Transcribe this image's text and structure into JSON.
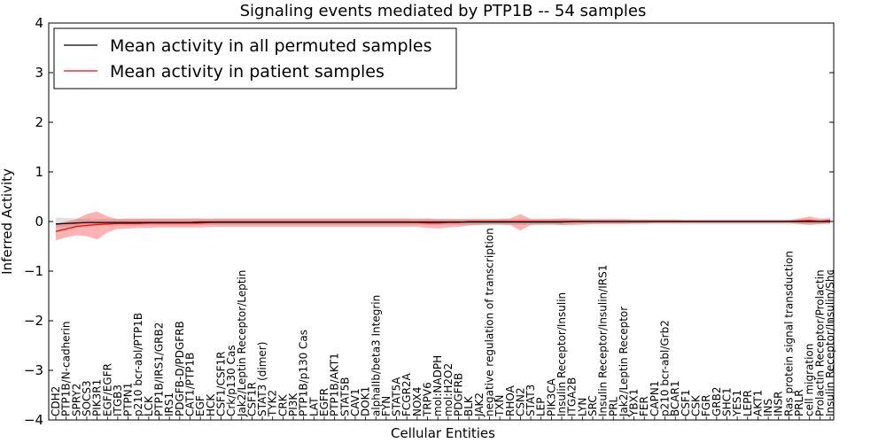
{
  "chart_data": {
    "type": "line",
    "title": "Signaling events mediated by PTP1B -- 54 samples",
    "xlabel": "Cellular Entities",
    "ylabel": "Inferred Activity",
    "ylim": [
      -4,
      4
    ],
    "yticks": [
      "4",
      "3",
      "2",
      "1",
      "0",
      "−1",
      "−2",
      "−3",
      "−4"
    ],
    "ytick_values": [
      4,
      3,
      2,
      1,
      0,
      -1,
      -2,
      -3,
      -4
    ],
    "legend": {
      "placement": "top-left",
      "entries": [
        {
          "label": "Mean activity in all permuted samples",
          "color": "#000000"
        },
        {
          "label": "Mean activity in patient samples",
          "color": "#ff0000"
        }
      ]
    },
    "categories": [
      "CDH2",
      "PTP1B/N-cadherin",
      "SPRY2",
      "SOCS3",
      "PIK3R1",
      "EGF/EGFR",
      "ITGB3",
      "PTPN1",
      "p210 bcr-abl/PTP1B",
      "LCK",
      "PTP1B/IRS1/GRB2",
      "IRS1",
      "PDGFB-D/PDGFRB",
      "CAT1/PTP1B",
      "EGF",
      "HCK",
      "CSF1/CSF1R",
      "Crk/p130 Cas",
      "Jak2/Leptin Receptor/Leptin",
      "CSF1R",
      "STAT3 (dimer)",
      "TYK2",
      "CRK",
      "PI3K",
      "PTP1B/p130 Cas",
      "LAT",
      "EGFR",
      "PTP1B/AKT1",
      "STAT5B",
      "CAV1",
      "DOK1",
      "alphaIIb/beta3 Integrin",
      "FYN",
      "STAT5A",
      "FCGR2A",
      "NOX4",
      "TRPV6",
      "mol:NADPH",
      "mol:H2O2",
      "PDGFRB",
      "BLK",
      "JAK2",
      "negative regulation of transcription",
      "TXN",
      "RHOA",
      "CSN2",
      "STAT3",
      "LEP",
      "PIK3CA",
      "Insulin Receptor/Insulin",
      "ITGA2B",
      "LYN",
      "SRC",
      "Insulin Receptor/Insulin/IRS1",
      "PRL",
      "Jak2/Leptin Receptor",
      "YBX1",
      "FER",
      "CAPN1",
      "p210 bcr-abl/Grb2",
      "BCAR1",
      "CSF1",
      "CSK",
      "FGR",
      "GRB2",
      "SHC1",
      "YES1",
      "LEPR",
      "AKT1",
      "INS",
      "INSR",
      "Ras protein signal transduction",
      "PRLR",
      "cell migration",
      "Prolactin Receptor/Prolactin",
      "Insulin Receptor/Insulin/Shc"
    ],
    "series": [
      {
        "name": "Mean activity in all permuted samples",
        "color": "#000000",
        "values": [
          -0.05,
          -0.04,
          -0.03,
          -0.02,
          -0.02,
          -0.02,
          -0.02,
          -0.02,
          -0.02,
          -0.02,
          -0.02,
          -0.02,
          -0.02,
          -0.02,
          -0.01,
          -0.01,
          -0.01,
          -0.01,
          -0.01,
          -0.01,
          -0.01,
          -0.01,
          -0.01,
          -0.01,
          -0.01,
          -0.01,
          -0.01,
          -0.01,
          -0.01,
          -0.01,
          -0.01,
          -0.01,
          -0.01,
          -0.01,
          -0.01,
          -0.01,
          -0.01,
          -0.01,
          -0.01,
          -0.01,
          -0.01,
          -0.01,
          -0.01,
          -0.01,
          -0.01,
          -0.01,
          -0.01,
          -0.01,
          -0.01,
          -0.01,
          0,
          0,
          0,
          0,
          0,
          0,
          0,
          0,
          0,
          0,
          0,
          0,
          0,
          0,
          0,
          0,
          0,
          0,
          0,
          0,
          0,
          0,
          0,
          0,
          0,
          0
        ],
        "band_upper": [
          0.08,
          0.07,
          0.06,
          0.05,
          0.05,
          0.05,
          0.05,
          0.05,
          0.05,
          0.05,
          0.05,
          0.05,
          0.05,
          0.05,
          0.05,
          0.05,
          0.05,
          0.05,
          0.05,
          0.05,
          0.05,
          0.05,
          0.05,
          0.05,
          0.05,
          0.05,
          0.05,
          0.05,
          0.05,
          0.05,
          0.05,
          0.05,
          0.05,
          0.05,
          0.05,
          0.05,
          0.05,
          0.05,
          0.05,
          0.05,
          0.05,
          0.05,
          0.05,
          0.05,
          0.05,
          0.05,
          0.05,
          0.05,
          0.05,
          0.05,
          0.04,
          0.04,
          0.04,
          0.04,
          0.04,
          0.04,
          0.04,
          0.04,
          0.04,
          0.04,
          0.04,
          0.04,
          0.04,
          0.04,
          0.04,
          0.04,
          0.04,
          0.04,
          0.04,
          0.04,
          0.04,
          0.04,
          0.04,
          0.04,
          0.04,
          0.04
        ],
        "band_lower": [
          -0.12,
          -0.11,
          -0.1,
          -0.09,
          -0.09,
          -0.08,
          -0.08,
          -0.08,
          -0.08,
          -0.08,
          -0.08,
          -0.08,
          -0.08,
          -0.08,
          -0.07,
          -0.07,
          -0.07,
          -0.07,
          -0.07,
          -0.07,
          -0.07,
          -0.07,
          -0.07,
          -0.07,
          -0.07,
          -0.07,
          -0.07,
          -0.07,
          -0.07,
          -0.07,
          -0.07,
          -0.07,
          -0.07,
          -0.07,
          -0.07,
          -0.07,
          -0.07,
          -0.07,
          -0.07,
          -0.07,
          -0.07,
          -0.07,
          -0.07,
          -0.07,
          -0.07,
          -0.07,
          -0.07,
          -0.07,
          -0.07,
          -0.07,
          -0.06,
          -0.06,
          -0.06,
          -0.06,
          -0.06,
          -0.06,
          -0.06,
          -0.06,
          -0.06,
          -0.06,
          -0.06,
          -0.06,
          -0.06,
          -0.06,
          -0.06,
          -0.06,
          -0.06,
          -0.06,
          -0.06,
          -0.06,
          -0.06,
          -0.06,
          -0.06,
          -0.06,
          -0.06,
          -0.06
        ]
      },
      {
        "name": "Mean activity in patient samples",
        "color": "#ff0000",
        "values": [
          -0.2,
          -0.15,
          -0.1,
          -0.08,
          -0.06,
          -0.05,
          -0.04,
          -0.04,
          -0.04,
          -0.03,
          -0.03,
          -0.03,
          -0.03,
          -0.03,
          -0.03,
          -0.02,
          -0.02,
          -0.02,
          -0.02,
          -0.02,
          -0.02,
          -0.02,
          -0.02,
          -0.02,
          -0.02,
          -0.02,
          -0.02,
          -0.02,
          -0.02,
          -0.02,
          -0.02,
          -0.02,
          -0.02,
          -0.02,
          -0.02,
          -0.02,
          -0.03,
          -0.03,
          -0.02,
          -0.02,
          0,
          0,
          0,
          0,
          0,
          0,
          0,
          0,
          0,
          0,
          0,
          0,
          0,
          0,
          0,
          0,
          0,
          0,
          0,
          0,
          0,
          0,
          0,
          0,
          0,
          0,
          0,
          0,
          0,
          0,
          0,
          0,
          0.01,
          0.02,
          0,
          0.02
        ],
        "band_upper": [
          -0.05,
          0.0,
          0.05,
          0.15,
          0.2,
          0.1,
          0.05,
          0.06,
          0.06,
          0.06,
          0.06,
          0.06,
          0.06,
          0.06,
          0.06,
          0.06,
          0.06,
          0.06,
          0.06,
          0.06,
          0.06,
          0.06,
          0.06,
          0.06,
          0.06,
          0.06,
          0.06,
          0.06,
          0.06,
          0.06,
          0.06,
          0.06,
          0.06,
          0.06,
          0.06,
          0.06,
          0.06,
          0.05,
          0.05,
          0.05,
          0.05,
          0.05,
          0.05,
          0.05,
          0.06,
          0.15,
          0.05,
          0.05,
          0.05,
          0.06,
          0.06,
          0.05,
          0.05,
          0.05,
          0.05,
          0.05,
          0.04,
          0.04,
          0.04,
          0.04,
          0.04,
          0.03,
          0.03,
          0.03,
          0.03,
          0.03,
          0.03,
          0.03,
          0.03,
          0.03,
          0.03,
          0.03,
          0.06,
          0.1,
          0.06,
          0.07
        ],
        "band_lower": [
          -0.38,
          -0.32,
          -0.28,
          -0.3,
          -0.36,
          -0.22,
          -0.15,
          -0.14,
          -0.13,
          -0.13,
          -0.12,
          -0.12,
          -0.12,
          -0.12,
          -0.12,
          -0.11,
          -0.11,
          -0.11,
          -0.11,
          -0.11,
          -0.11,
          -0.11,
          -0.11,
          -0.11,
          -0.11,
          -0.11,
          -0.11,
          -0.11,
          -0.11,
          -0.11,
          -0.11,
          -0.11,
          -0.11,
          -0.11,
          -0.11,
          -0.11,
          -0.13,
          -0.14,
          -0.12,
          -0.11,
          -0.08,
          -0.07,
          -0.06,
          -0.06,
          -0.07,
          -0.18,
          -0.07,
          -0.06,
          -0.06,
          -0.07,
          -0.07,
          -0.06,
          -0.05,
          -0.05,
          -0.05,
          -0.05,
          -0.04,
          -0.04,
          -0.03,
          -0.03,
          -0.03,
          -0.03,
          -0.03,
          -0.03,
          -0.03,
          -0.03,
          -0.03,
          -0.03,
          -0.03,
          -0.03,
          -0.03,
          -0.03,
          -0.05,
          -0.07,
          -0.05,
          -0.04
        ]
      }
    ]
  }
}
